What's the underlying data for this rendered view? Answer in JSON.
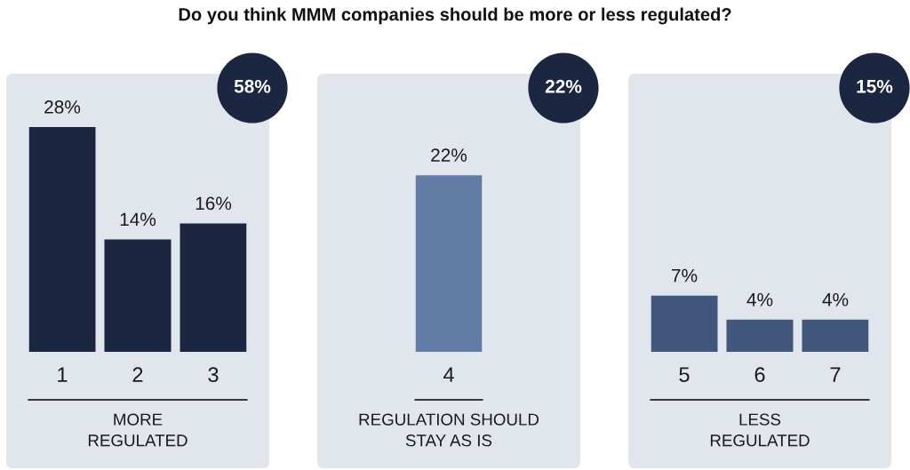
{
  "chart_data": [
    {
      "type": "bar",
      "title": "Do you think MMM companies should be more or less regulated?",
      "categories": [
        "1",
        "2",
        "3"
      ],
      "values": [
        28,
        14,
        16
      ],
      "value_labels": [
        "28%",
        "14%",
        "16%"
      ],
      "color": "#1b2740",
      "xlabel": "MORE\nREGULATED",
      "annotations": [
        "58%"
      ],
      "tick_labels": "x"
    },
    {
      "type": "bar",
      "categories": [
        "4"
      ],
      "values": [
        22
      ],
      "value_labels": [
        "22%"
      ],
      "color": "#637ca6",
      "xlabel": "REGULATION SHOULD\nSTAY AS IS",
      "annotations": [
        "22%"
      ],
      "tick_labels": "x"
    },
    {
      "type": "bar",
      "categories": [
        "5",
        "6",
        "7"
      ],
      "values": [
        7,
        4,
        4
      ],
      "value_labels": [
        "7%",
        "4%",
        "4%"
      ],
      "color": "#42577c",
      "xlabel": "LESS\nREGULATED",
      "annotations": [
        "15%"
      ],
      "tick_labels": "x"
    }
  ]
}
